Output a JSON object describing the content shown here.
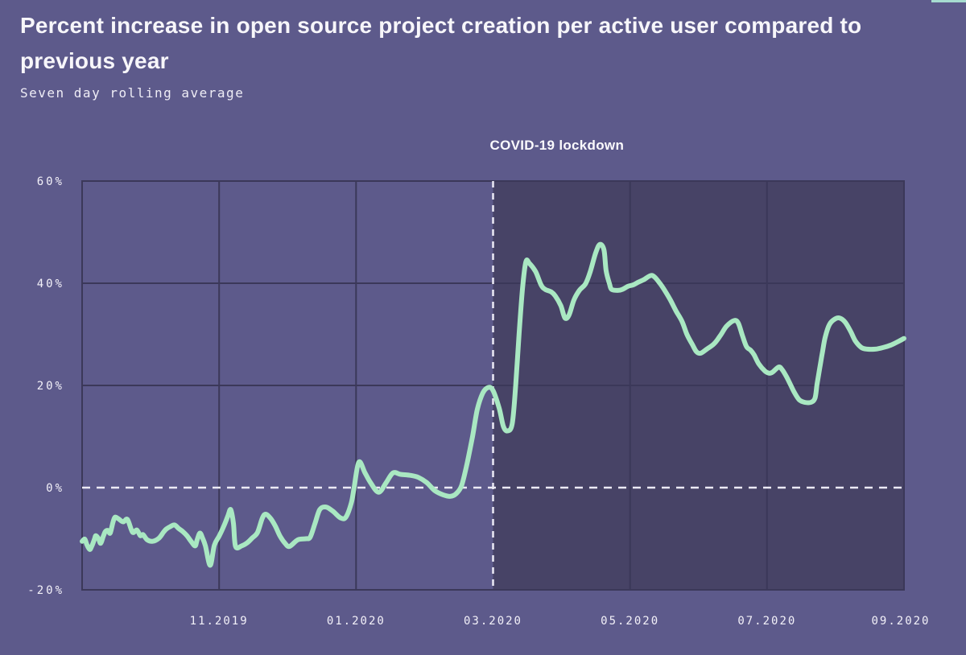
{
  "page": {
    "background": "#5d5a8b"
  },
  "colors": {
    "plot_background": "#5d5a8b",
    "lockdown_region": "#474366",
    "gridline": "#3b3859",
    "plot_border": "#3b3859",
    "dashed_line": "#eceaf5",
    "line": "#a9e8c2",
    "text": "#f3f1f9",
    "accent_sliver": "#a6dbd0"
  },
  "chart_data": {
    "type": "line",
    "title": "Percent increase in open source project creation per active user compared to previous year",
    "subtitle": "Seven day rolling average",
    "grid": true,
    "legend": false,
    "x_axis": {
      "unit": "months from 09.2019",
      "range_months": [
        0,
        12
      ],
      "start": "09.2019",
      "end": "09.2020",
      "ticks": [
        {
          "month": 2,
          "label": "11.2019"
        },
        {
          "month": 4,
          "label": "01.2020"
        },
        {
          "month": 6,
          "label": "03.2020"
        },
        {
          "month": 8,
          "label": "05.2020"
        },
        {
          "month": 10,
          "label": "07.2020"
        },
        {
          "month": 12,
          "label": "09.2020"
        }
      ]
    },
    "y_axis": {
      "unit": "percent",
      "range": [
        -20,
        60
      ],
      "ticks": [
        {
          "value": 60,
          "label": "60%"
        },
        {
          "value": 40,
          "label": "40%"
        },
        {
          "value": 20,
          "label": "20%"
        },
        {
          "value": 0,
          "label": "0%"
        },
        {
          "value": -20,
          "label": "-20%"
        }
      ]
    },
    "zero_line": {
      "value": 0,
      "style": "dashed"
    },
    "lockdown": {
      "label": "COVID-19 lockdown",
      "month": 6,
      "date": "03.2020",
      "shaded_from_month": 6,
      "shaded_to_month": 12,
      "style": "dashed-vertical-line"
    },
    "series": [
      {
        "name": "Percent increase (seven day rolling average)",
        "color": "#a9e8c2",
        "points": [
          [
            0.0,
            -10.5
          ],
          [
            0.04,
            -10.1
          ],
          [
            0.07,
            -11.2
          ],
          [
            0.11,
            -12.1
          ],
          [
            0.14,
            -11.5
          ],
          [
            0.18,
            -10.1
          ],
          [
            0.2,
            -9.4
          ],
          [
            0.24,
            -10.0
          ],
          [
            0.27,
            -10.9
          ],
          [
            0.31,
            -9.5
          ],
          [
            0.34,
            -8.6
          ],
          [
            0.38,
            -8.4
          ],
          [
            0.41,
            -8.9
          ],
          [
            0.45,
            -6.8
          ],
          [
            0.48,
            -5.8
          ],
          [
            0.53,
            -6.1
          ],
          [
            0.6,
            -6.7
          ],
          [
            0.66,
            -6.2
          ],
          [
            0.72,
            -8.3
          ],
          [
            0.75,
            -8.8
          ],
          [
            0.8,
            -8.3
          ],
          [
            0.85,
            -9.4
          ],
          [
            0.89,
            -9.2
          ],
          [
            0.95,
            -10.2
          ],
          [
            1.03,
            -10.5
          ],
          [
            1.12,
            -9.9
          ],
          [
            1.19,
            -8.7
          ],
          [
            1.23,
            -8.1
          ],
          [
            1.29,
            -7.6
          ],
          [
            1.35,
            -7.3
          ],
          [
            1.41,
            -8.0
          ],
          [
            1.47,
            -8.6
          ],
          [
            1.53,
            -9.4
          ],
          [
            1.59,
            -10.5
          ],
          [
            1.65,
            -11.4
          ],
          [
            1.68,
            -10.2
          ],
          [
            1.72,
            -8.9
          ],
          [
            1.76,
            -9.9
          ],
          [
            1.8,
            -11.4
          ],
          [
            1.87,
            -15.2
          ],
          [
            1.93,
            -11.3
          ],
          [
            2.0,
            -9.5
          ],
          [
            2.07,
            -7.5
          ],
          [
            2.13,
            -5.5
          ],
          [
            2.17,
            -4.3
          ],
          [
            2.21,
            -7.0
          ],
          [
            2.24,
            -11.5
          ],
          [
            2.33,
            -11.4
          ],
          [
            2.41,
            -10.8
          ],
          [
            2.48,
            -9.9
          ],
          [
            2.56,
            -8.8
          ],
          [
            2.63,
            -6.0
          ],
          [
            2.68,
            -5.2
          ],
          [
            2.75,
            -6.0
          ],
          [
            2.82,
            -7.5
          ],
          [
            2.89,
            -9.5
          ],
          [
            2.97,
            -11.0
          ],
          [
            3.03,
            -11.5
          ],
          [
            3.15,
            -10.2
          ],
          [
            3.27,
            -10.0
          ],
          [
            3.33,
            -9.7
          ],
          [
            3.4,
            -7.0
          ],
          [
            3.47,
            -4.3
          ],
          [
            3.56,
            -3.8
          ],
          [
            3.66,
            -4.6
          ],
          [
            3.77,
            -5.9
          ],
          [
            3.85,
            -5.8
          ],
          [
            3.93,
            -3.0
          ],
          [
            3.97,
            -0.1
          ],
          [
            4.04,
            5.0
          ],
          [
            4.13,
            2.9
          ],
          [
            4.21,
            1.0
          ],
          [
            4.33,
            -0.9
          ],
          [
            4.44,
            1.0
          ],
          [
            4.54,
            2.9
          ],
          [
            4.65,
            2.6
          ],
          [
            4.8,
            2.4
          ],
          [
            4.91,
            2.0
          ],
          [
            5.03,
            1.0
          ],
          [
            5.15,
            -0.6
          ],
          [
            5.27,
            -1.4
          ],
          [
            5.38,
            -1.7
          ],
          [
            5.46,
            -1.2
          ],
          [
            5.54,
            0.4
          ],
          [
            5.62,
            4.7
          ],
          [
            5.7,
            10.0
          ],
          [
            5.77,
            15.3
          ],
          [
            5.85,
            18.5
          ],
          [
            5.93,
            19.6
          ],
          [
            6.0,
            19.0
          ],
          [
            6.09,
            15.5
          ],
          [
            6.15,
            12.0
          ],
          [
            6.21,
            11.1
          ],
          [
            6.28,
            12.5
          ],
          [
            6.33,
            20.0
          ],
          [
            6.38,
            30.0
          ],
          [
            6.43,
            39.0
          ],
          [
            6.48,
            44.2
          ],
          [
            6.53,
            43.9
          ],
          [
            6.62,
            42.3
          ],
          [
            6.7,
            39.7
          ],
          [
            6.76,
            38.8
          ],
          [
            6.85,
            38.3
          ],
          [
            6.91,
            37.5
          ],
          [
            6.99,
            35.6
          ],
          [
            7.05,
            33.2
          ],
          [
            7.11,
            33.8
          ],
          [
            7.18,
            36.7
          ],
          [
            7.26,
            38.6
          ],
          [
            7.35,
            39.9
          ],
          [
            7.42,
            42.3
          ],
          [
            7.5,
            46.0
          ],
          [
            7.56,
            47.6
          ],
          [
            7.62,
            46.5
          ],
          [
            7.65,
            42.5
          ],
          [
            7.7,
            39.9
          ],
          [
            7.73,
            38.8
          ],
          [
            7.82,
            38.6
          ],
          [
            7.89,
            38.8
          ],
          [
            7.97,
            39.4
          ],
          [
            8.05,
            39.7
          ],
          [
            8.12,
            40.2
          ],
          [
            8.2,
            40.7
          ],
          [
            8.3,
            41.5
          ],
          [
            8.36,
            41.2
          ],
          [
            8.44,
            39.9
          ],
          [
            8.52,
            38.3
          ],
          [
            8.59,
            36.7
          ],
          [
            8.67,
            34.6
          ],
          [
            8.76,
            32.5
          ],
          [
            8.83,
            30.0
          ],
          [
            8.91,
            28.0
          ],
          [
            8.97,
            26.6
          ],
          [
            9.03,
            26.3
          ],
          [
            9.12,
            27.1
          ],
          [
            9.23,
            28.2
          ],
          [
            9.32,
            29.8
          ],
          [
            9.41,
            31.6
          ],
          [
            9.52,
            32.7
          ],
          [
            9.58,
            32.2
          ],
          [
            9.64,
            29.8
          ],
          [
            9.7,
            27.6
          ],
          [
            9.76,
            26.9
          ],
          [
            9.81,
            26.0
          ],
          [
            9.88,
            24.2
          ],
          [
            9.97,
            22.8
          ],
          [
            10.03,
            22.4
          ],
          [
            10.08,
            22.6
          ],
          [
            10.17,
            23.6
          ],
          [
            10.22,
            23.1
          ],
          [
            10.28,
            21.8
          ],
          [
            10.34,
            20.2
          ],
          [
            10.4,
            18.6
          ],
          [
            10.47,
            17.2
          ],
          [
            10.55,
            16.7
          ],
          [
            10.64,
            16.7
          ],
          [
            10.7,
            17.5
          ],
          [
            10.73,
            20.2
          ],
          [
            10.77,
            23.4
          ],
          [
            10.81,
            26.6
          ],
          [
            10.85,
            29.5
          ],
          [
            10.91,
            31.9
          ],
          [
            10.99,
            33.0
          ],
          [
            11.06,
            33.2
          ],
          [
            11.14,
            32.4
          ],
          [
            11.22,
            30.6
          ],
          [
            11.29,
            28.7
          ],
          [
            11.38,
            27.4
          ],
          [
            11.46,
            27.1
          ],
          [
            11.58,
            27.1
          ],
          [
            11.69,
            27.4
          ],
          [
            11.81,
            27.9
          ],
          [
            11.93,
            28.7
          ],
          [
            12.0,
            29.2
          ]
        ]
      }
    ]
  }
}
